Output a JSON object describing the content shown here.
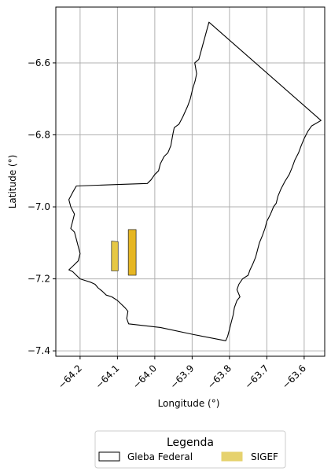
{
  "chart_data": {
    "type": "map",
    "title": "",
    "xlabel": "Longitude (°)",
    "ylabel": "Latitude (°)",
    "xlim": [
      -64.265,
      -63.545
    ],
    "ylim": [
      -7.415,
      -6.445
    ],
    "grid": true,
    "x_ticks": [
      -64.2,
      -64.1,
      -64.0,
      -63.9,
      -63.8,
      -63.7,
      -63.6
    ],
    "x_tick_labels": [
      "−64.2",
      "−64.1",
      "−64.0",
      "−63.9",
      "−63.8",
      "−63.7",
      "−63.6"
    ],
    "y_ticks": [
      -6.6,
      -6.8,
      -7.0,
      -7.2,
      -7.4
    ],
    "y_tick_labels": [
      "−6.6",
      "−6.8",
      "−7.0",
      "−7.2",
      "−7.4"
    ],
    "legend": {
      "title": "Legenda",
      "placement": "bottom-center",
      "entries": [
        {
          "label": "Gleba Federal",
          "fill": "#ffffff",
          "edge": "#000000"
        },
        {
          "label": "SIGEF",
          "fill": "#e6d26e",
          "edge": "#e6d26e"
        }
      ]
    },
    "series": [
      {
        "name": "Gleba Federal",
        "kind": "polygon",
        "fill": "none",
        "edge": "#000000",
        "points": [
          [
            -64.21,
            -6.942
          ],
          [
            -64.105,
            -6.938
          ],
          [
            -64.02,
            -6.935
          ],
          [
            -64.01,
            -6.925
          ],
          [
            -64.0,
            -6.91
          ],
          [
            -63.99,
            -6.9
          ],
          [
            -63.985,
            -6.88
          ],
          [
            -63.975,
            -6.86
          ],
          [
            -63.965,
            -6.85
          ],
          [
            -63.957,
            -6.83
          ],
          [
            -63.952,
            -6.8
          ],
          [
            -63.948,
            -6.78
          ],
          [
            -63.935,
            -6.77
          ],
          [
            -63.925,
            -6.75
          ],
          [
            -63.912,
            -6.72
          ],
          [
            -63.905,
            -6.7
          ],
          [
            -63.898,
            -6.67
          ],
          [
            -63.892,
            -6.65
          ],
          [
            -63.888,
            -6.63
          ],
          [
            -63.893,
            -6.6
          ],
          [
            -63.882,
            -6.59
          ],
          [
            -63.855,
            -6.487
          ],
          [
            -63.555,
            -6.76
          ],
          [
            -63.58,
            -6.775
          ],
          [
            -63.59,
            -6.79
          ],
          [
            -63.6,
            -6.81
          ],
          [
            -63.608,
            -6.83
          ],
          [
            -63.615,
            -6.85
          ],
          [
            -63.625,
            -6.87
          ],
          [
            -63.632,
            -6.89
          ],
          [
            -63.64,
            -6.91
          ],
          [
            -63.652,
            -6.93
          ],
          [
            -63.662,
            -6.95
          ],
          [
            -63.67,
            -6.97
          ],
          [
            -63.675,
            -6.99
          ],
          [
            -63.682,
            -7.0
          ],
          [
            -63.69,
            -7.02
          ],
          [
            -63.7,
            -7.04
          ],
          [
            -63.705,
            -7.06
          ],
          [
            -63.712,
            -7.08
          ],
          [
            -63.72,
            -7.1
          ],
          [
            -63.725,
            -7.12
          ],
          [
            -63.73,
            -7.14
          ],
          [
            -63.738,
            -7.16
          ],
          [
            -63.745,
            -7.175
          ],
          [
            -63.75,
            -7.19
          ],
          [
            -63.765,
            -7.2
          ],
          [
            -63.775,
            -7.215
          ],
          [
            -63.78,
            -7.23
          ],
          [
            -63.772,
            -7.25
          ],
          [
            -63.78,
            -7.26
          ],
          [
            -63.787,
            -7.28
          ],
          [
            -63.79,
            -7.3
          ],
          [
            -63.795,
            -7.32
          ],
          [
            -63.8,
            -7.34
          ],
          [
            -63.805,
            -7.36
          ],
          [
            -63.81,
            -7.372
          ],
          [
            -63.895,
            -7.355
          ],
          [
            -63.985,
            -7.335
          ],
          [
            -64.07,
            -7.325
          ],
          [
            -64.075,
            -7.31
          ],
          [
            -64.072,
            -7.29
          ],
          [
            -64.08,
            -7.28
          ],
          [
            -64.09,
            -7.27
          ],
          [
            -64.1,
            -7.26
          ],
          [
            -64.115,
            -7.25
          ],
          [
            -64.13,
            -7.245
          ],
          [
            -64.14,
            -7.235
          ],
          [
            -64.152,
            -7.225
          ],
          [
            -64.16,
            -7.215
          ],
          [
            -64.17,
            -7.21
          ],
          [
            -64.185,
            -7.205
          ],
          [
            -64.2,
            -7.2
          ],
          [
            -64.21,
            -7.19
          ],
          [
            -64.22,
            -7.18
          ],
          [
            -64.23,
            -7.175
          ],
          [
            -64.22,
            -7.165
          ],
          [
            -64.205,
            -7.15
          ],
          [
            -64.2,
            -7.13
          ],
          [
            -64.205,
            -7.11
          ],
          [
            -64.21,
            -7.09
          ],
          [
            -64.215,
            -7.07
          ],
          [
            -64.225,
            -7.06
          ],
          [
            -64.22,
            -7.04
          ],
          [
            -64.215,
            -7.02
          ],
          [
            -64.225,
            -7.0
          ],
          [
            -64.23,
            -6.98
          ],
          [
            -64.22,
            -6.96
          ],
          [
            -64.21,
            -6.942
          ]
        ]
      },
      {
        "name": "SIGEF",
        "kind": "polygon",
        "fill": "#e6c845",
        "edge": "#444444",
        "points": [
          [
            -64.116,
            -7.095
          ],
          [
            -64.098,
            -7.097
          ],
          [
            -64.098,
            -7.178
          ],
          [
            -64.116,
            -7.178
          ]
        ]
      },
      {
        "name": "SIGEF",
        "kind": "polygon",
        "fill": "#e6b622",
        "edge": "#333333",
        "points": [
          [
            -64.071,
            -7.063
          ],
          [
            -64.05,
            -7.063
          ],
          [
            -64.05,
            -7.19
          ],
          [
            -64.071,
            -7.19
          ]
        ]
      }
    ]
  }
}
